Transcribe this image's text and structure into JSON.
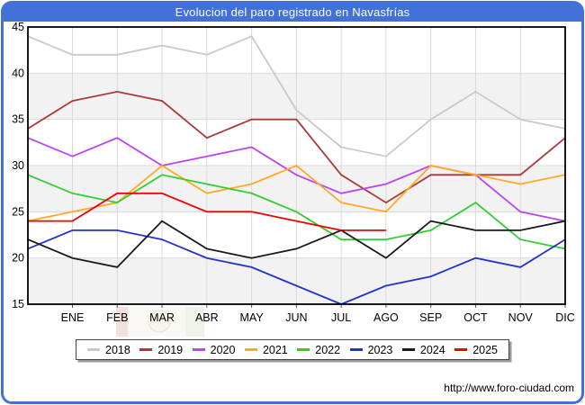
{
  "chart_data": {
    "type": "line",
    "title": "Evolucion del paro registrado en Navasfrías",
    "x_categories": [
      "ENE",
      "FEB",
      "MAR",
      "ABR",
      "MAY",
      "JUN",
      "JUL",
      "AGO",
      "SEP",
      "OCT",
      "NOV",
      "DIC"
    ],
    "y_ticks": [
      45,
      40,
      35,
      30,
      25,
      20,
      15
    ],
    "ylim": [
      15,
      45
    ],
    "grid": true,
    "legend_position": "bottom",
    "note": "Each series has a leading value drawn at the left axis just before ENE; 2025 ends at AGO.",
    "series": [
      {
        "name": "2018",
        "color": "#c9c9c9",
        "values": [
          44,
          42,
          42,
          43,
          42,
          44,
          36,
          32,
          31,
          35,
          38,
          35,
          34
        ]
      },
      {
        "name": "2019",
        "color": "#aa3939",
        "values": [
          34,
          37,
          38,
          37,
          33,
          35,
          35,
          29,
          26,
          29,
          29,
          29,
          33
        ]
      },
      {
        "name": "2020",
        "color": "#bb44ee",
        "values": [
          33,
          31,
          33,
          30,
          31,
          32,
          29,
          27,
          28,
          30,
          29,
          25,
          24
        ]
      },
      {
        "name": "2021",
        "color": "#ffa928",
        "values": [
          24,
          25,
          26,
          30,
          27,
          28,
          30,
          26,
          25,
          30,
          29,
          28,
          29
        ]
      },
      {
        "name": "2022",
        "color": "#33cc33",
        "values": [
          29,
          27,
          26,
          29,
          28,
          27,
          25,
          22,
          22,
          23,
          26,
          22,
          21
        ]
      },
      {
        "name": "2023",
        "color": "#2233cc",
        "values": [
          21,
          23,
          23,
          22,
          20,
          19,
          17,
          15,
          17,
          18,
          20,
          19,
          22
        ]
      },
      {
        "name": "2024",
        "color": "#1a1a1a",
        "values": [
          22,
          20,
          19,
          24,
          21,
          20,
          21,
          23,
          20,
          24,
          23,
          23,
          24
        ]
      },
      {
        "name": "2025",
        "color": "#ee0000",
        "values": [
          24,
          24,
          27,
          27,
          25,
          25,
          24,
          23,
          23
        ]
      }
    ],
    "colors": {
      "band_light": "#f2f2f2",
      "band_white": "#ffffff",
      "gridline": "#d9d9d9",
      "plot_border": "#000000",
      "title_bar": "#4272d7"
    }
  },
  "footer": {
    "url": "http://www.foro-ciudad.com"
  }
}
